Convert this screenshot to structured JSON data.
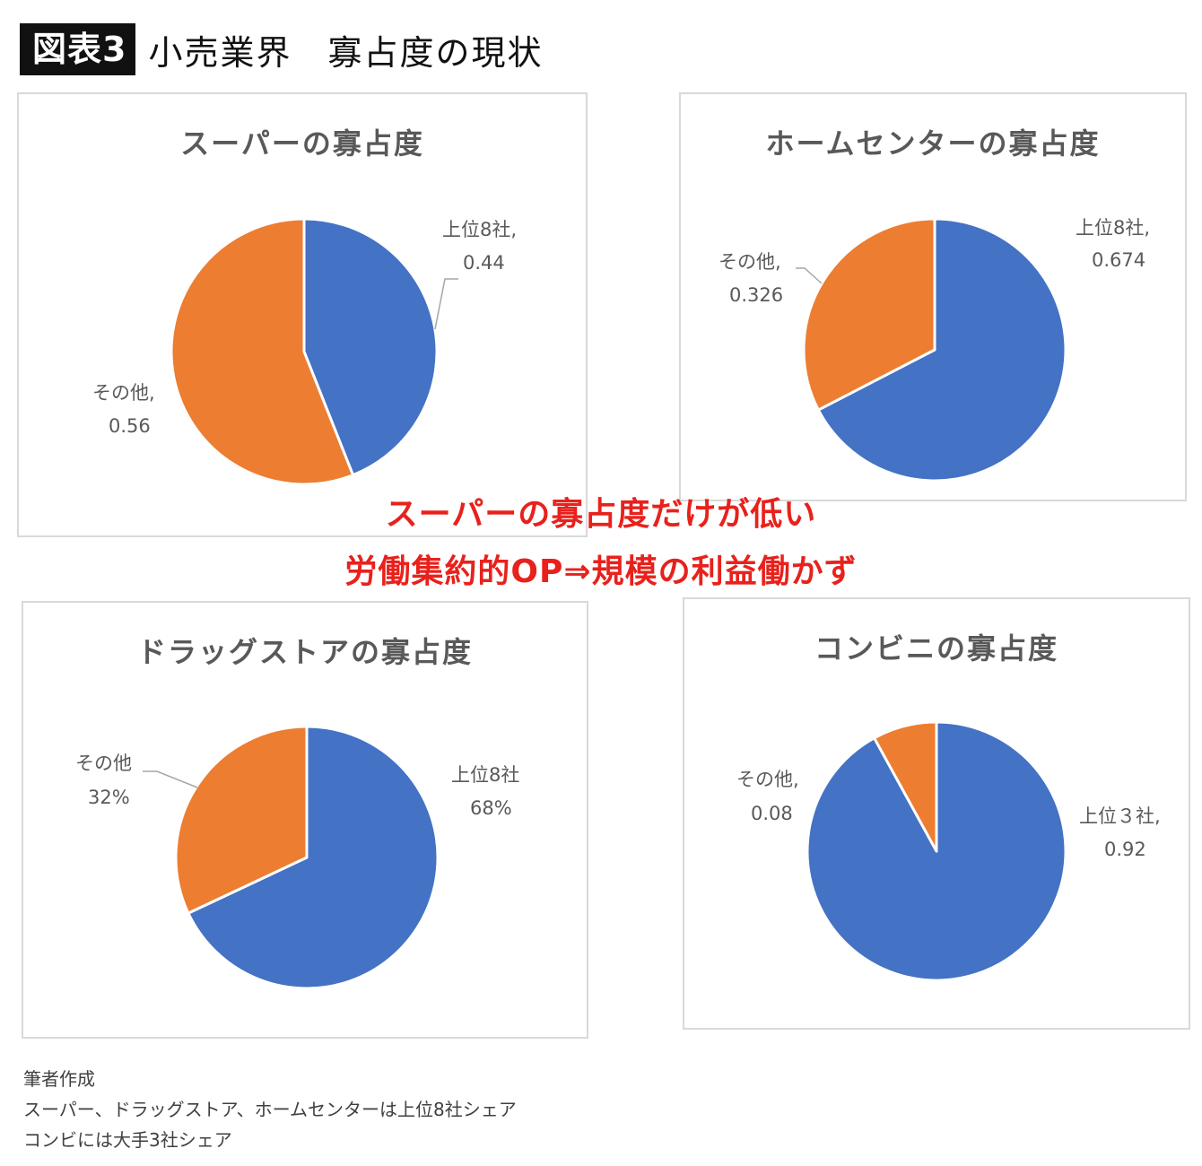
{
  "header": {
    "badge": "図表3",
    "title": "小売業界　寡占度の現状"
  },
  "annotations": {
    "line1": "スーパーの寡占度だけが低い",
    "line2": "労働集約的OP⇒規模の利益働かず"
  },
  "notes": [
    "筆者作成",
    "スーパー、ドラッグストア、ホームセンターは上位8社シェア",
    "コンビには大手3社シェア"
  ],
  "colors": {
    "blue": "#4472c4",
    "orange": "#ed7d31"
  },
  "chart_data": [
    {
      "type": "pie",
      "title": "スーパーの寡占度",
      "slices": [
        {
          "label": "上位8社,",
          "value": 0.44,
          "value_text": "0.44",
          "color": "#4472c4"
        },
        {
          "label": "その他,",
          "value": 0.56,
          "value_text": "0.56",
          "color": "#ed7d31"
        }
      ]
    },
    {
      "type": "pie",
      "title": "ホームセンターの寡占度",
      "slices": [
        {
          "label": "上位8社,",
          "value": 0.674,
          "value_text": "0.674",
          "color": "#4472c4"
        },
        {
          "label": "その他,",
          "value": 0.326,
          "value_text": "0.326",
          "color": "#ed7d31"
        }
      ]
    },
    {
      "type": "pie",
      "title": "ドラッグストアの寡占度",
      "slices": [
        {
          "label": "上位8社",
          "value": 0.68,
          "value_text": "68%",
          "color": "#4472c4"
        },
        {
          "label": "その他",
          "value": 0.32,
          "value_text": "32%",
          "color": "#ed7d31"
        }
      ]
    },
    {
      "type": "pie",
      "title": "コンビニの寡占度",
      "slices": [
        {
          "label": "上位３社,",
          "value": 0.92,
          "value_text": "0.92",
          "color": "#4472c4"
        },
        {
          "label": "その他,",
          "value": 0.08,
          "value_text": "0.08",
          "color": "#ed7d31"
        }
      ]
    }
  ]
}
